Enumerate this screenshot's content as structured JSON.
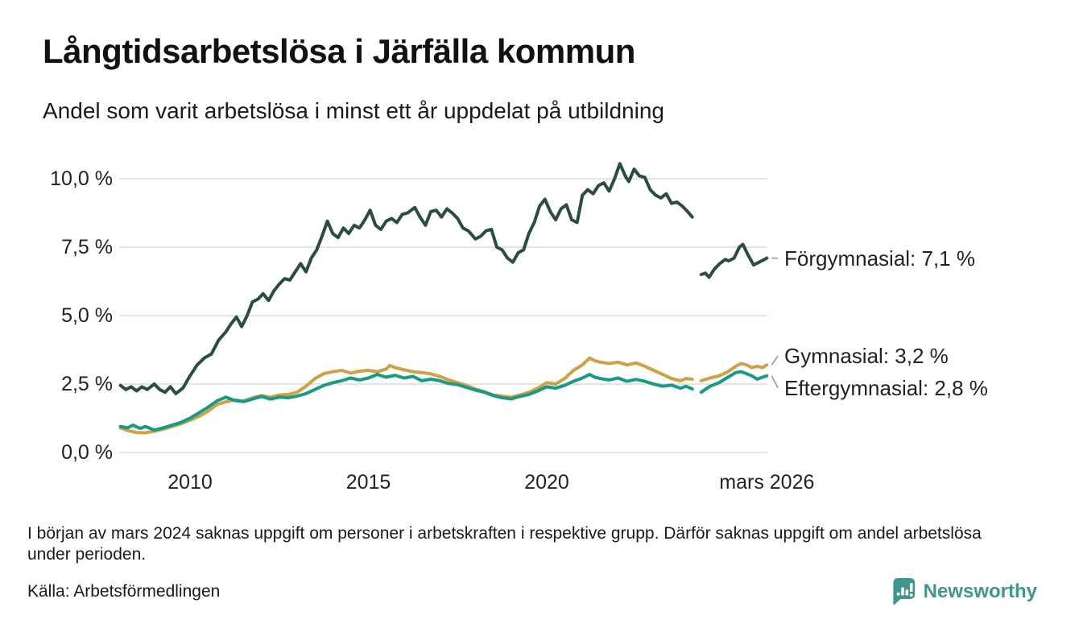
{
  "header": {
    "title": "Långtidsarbetslösa i Järfälla kommun",
    "subtitle": "Andel som varit arbetslösa i minst ett år uppdelat på utbildning"
  },
  "footnote": "I början av mars 2024 saknas uppgift om personer i arbetskraften i respektive grupp. Därför saknas uppgift om andel arbetslösa under perioden.",
  "source": "Källa: Arbetsförmedlingen",
  "branding": {
    "logo_text": "Newsworthy",
    "logo_color": "#3f968e"
  },
  "colors": {
    "grid": "#e5e4e2",
    "leader": "#999999",
    "axis_text": "#222222",
    "annotation_text": "#222222"
  },
  "chart_data": {
    "type": "line",
    "title": "Långtidsarbetslösa i Järfälla kommun",
    "subtitle": "Andel som varit arbetslösa i minst ett år uppdelat på utbildning",
    "xlabel": "",
    "ylabel": "",
    "ylim": [
      0,
      10.8
    ],
    "grid": "horizontal",
    "legend_position": "right-end-labels",
    "y_ticks": [
      {
        "value": 0.0,
        "label": "0,0 %"
      },
      {
        "value": 2.5,
        "label": "2,5 %"
      },
      {
        "value": 5.0,
        "label": "5,0 %"
      },
      {
        "value": 7.5,
        "label": "7,5 %"
      },
      {
        "value": 10.0,
        "label": "10,0 %"
      }
    ],
    "x_ticks": [
      {
        "value": 2010,
        "label": "2010"
      },
      {
        "value": 2015,
        "label": "2015"
      },
      {
        "value": 2020,
        "label": "2020"
      },
      {
        "value": 2026.17,
        "label": "mars 2026"
      }
    ],
    "gap_note": "data missing from early mars 2024",
    "series": [
      {
        "name": "Förgymnasial",
        "end_label": "Förgymnasial: 7,1 %",
        "end_value": "7,1 %",
        "color": "#2b4c42",
        "points": [
          [
            2008.05,
            2.45
          ],
          [
            2008.2,
            2.3
          ],
          [
            2008.35,
            2.4
          ],
          [
            2008.5,
            2.25
          ],
          [
            2008.65,
            2.4
          ],
          [
            2008.8,
            2.3
          ],
          [
            2009.0,
            2.5
          ],
          [
            2009.15,
            2.3
          ],
          [
            2009.3,
            2.2
          ],
          [
            2009.45,
            2.4
          ],
          [
            2009.6,
            2.15
          ],
          [
            2009.8,
            2.35
          ],
          [
            2010.0,
            2.8
          ],
          [
            2010.2,
            3.2
          ],
          [
            2010.4,
            3.45
          ],
          [
            2010.6,
            3.6
          ],
          [
            2010.8,
            4.1
          ],
          [
            2011.0,
            4.4
          ],
          [
            2011.15,
            4.7
          ],
          [
            2011.3,
            4.95
          ],
          [
            2011.45,
            4.6
          ],
          [
            2011.6,
            5.0
          ],
          [
            2011.75,
            5.5
          ],
          [
            2011.9,
            5.6
          ],
          [
            2012.05,
            5.8
          ],
          [
            2012.2,
            5.55
          ],
          [
            2012.35,
            5.9
          ],
          [
            2012.5,
            6.15
          ],
          [
            2012.65,
            6.35
          ],
          [
            2012.8,
            6.3
          ],
          [
            2012.95,
            6.6
          ],
          [
            2013.1,
            6.9
          ],
          [
            2013.25,
            6.6
          ],
          [
            2013.4,
            7.1
          ],
          [
            2013.55,
            7.4
          ],
          [
            2013.7,
            7.9
          ],
          [
            2013.85,
            8.45
          ],
          [
            2014.0,
            8.0
          ],
          [
            2014.15,
            7.85
          ],
          [
            2014.3,
            8.2
          ],
          [
            2014.45,
            8.0
          ],
          [
            2014.6,
            8.3
          ],
          [
            2014.75,
            8.2
          ],
          [
            2014.9,
            8.5
          ],
          [
            2015.05,
            8.85
          ],
          [
            2015.2,
            8.3
          ],
          [
            2015.35,
            8.15
          ],
          [
            2015.5,
            8.45
          ],
          [
            2015.65,
            8.55
          ],
          [
            2015.8,
            8.4
          ],
          [
            2015.95,
            8.7
          ],
          [
            2016.1,
            8.75
          ],
          [
            2016.3,
            8.95
          ],
          [
            2016.45,
            8.6
          ],
          [
            2016.6,
            8.3
          ],
          [
            2016.75,
            8.8
          ],
          [
            2016.9,
            8.85
          ],
          [
            2017.05,
            8.6
          ],
          [
            2017.2,
            8.9
          ],
          [
            2017.35,
            8.75
          ],
          [
            2017.5,
            8.55
          ],
          [
            2017.65,
            8.2
          ],
          [
            2017.8,
            8.1
          ],
          [
            2018.0,
            7.8
          ],
          [
            2018.15,
            7.9
          ],
          [
            2018.3,
            8.1
          ],
          [
            2018.45,
            8.15
          ],
          [
            2018.6,
            7.5
          ],
          [
            2018.75,
            7.4
          ],
          [
            2018.9,
            7.1
          ],
          [
            2019.05,
            6.95
          ],
          [
            2019.2,
            7.3
          ],
          [
            2019.35,
            7.4
          ],
          [
            2019.5,
            8.0
          ],
          [
            2019.65,
            8.4
          ],
          [
            2019.8,
            9.0
          ],
          [
            2019.95,
            9.25
          ],
          [
            2020.1,
            8.8
          ],
          [
            2020.25,
            8.5
          ],
          [
            2020.4,
            8.9
          ],
          [
            2020.55,
            9.05
          ],
          [
            2020.7,
            8.5
          ],
          [
            2020.85,
            8.4
          ],
          [
            2021.0,
            9.4
          ],
          [
            2021.15,
            9.6
          ],
          [
            2021.3,
            9.45
          ],
          [
            2021.45,
            9.75
          ],
          [
            2021.6,
            9.85
          ],
          [
            2021.75,
            9.55
          ],
          [
            2021.9,
            10.0
          ],
          [
            2022.05,
            10.55
          ],
          [
            2022.2,
            10.1
          ],
          [
            2022.3,
            9.9
          ],
          [
            2022.45,
            10.35
          ],
          [
            2022.6,
            10.1
          ],
          [
            2022.75,
            10.05
          ],
          [
            2022.9,
            9.6
          ],
          [
            2023.05,
            9.4
          ],
          [
            2023.2,
            9.3
          ],
          [
            2023.35,
            9.45
          ],
          [
            2023.5,
            9.1
          ],
          [
            2023.65,
            9.15
          ],
          [
            2023.8,
            9.0
          ],
          [
            2023.95,
            8.8
          ],
          [
            2024.08,
            8.6
          ],
          null,
          [
            2024.33,
            6.5
          ],
          [
            2024.45,
            6.55
          ],
          [
            2024.55,
            6.4
          ],
          [
            2024.7,
            6.7
          ],
          [
            2024.85,
            6.9
          ],
          [
            2025.0,
            7.05
          ],
          [
            2025.1,
            7.0
          ],
          [
            2025.25,
            7.1
          ],
          [
            2025.4,
            7.5
          ],
          [
            2025.5,
            7.6
          ],
          [
            2025.65,
            7.2
          ],
          [
            2025.8,
            6.85
          ],
          [
            2025.95,
            6.95
          ],
          [
            2026.17,
            7.1
          ]
        ]
      },
      {
        "name": "Gymnasial",
        "end_label": "Gymnasial: 3,2 %",
        "end_value": "3,2 %",
        "color": "#cfa144",
        "points": [
          [
            2008.05,
            0.9
          ],
          [
            2008.25,
            0.8
          ],
          [
            2008.5,
            0.73
          ],
          [
            2008.75,
            0.72
          ],
          [
            2009.0,
            0.78
          ],
          [
            2009.25,
            0.85
          ],
          [
            2009.5,
            0.95
          ],
          [
            2009.75,
            1.05
          ],
          [
            2010.0,
            1.18
          ],
          [
            2010.25,
            1.32
          ],
          [
            2010.5,
            1.5
          ],
          [
            2010.75,
            1.75
          ],
          [
            2011.0,
            1.85
          ],
          [
            2011.25,
            1.92
          ],
          [
            2011.5,
            1.88
          ],
          [
            2011.75,
            2.0
          ],
          [
            2012.0,
            2.08
          ],
          [
            2012.25,
            2.02
          ],
          [
            2012.5,
            2.1
          ],
          [
            2012.75,
            2.12
          ],
          [
            2013.0,
            2.2
          ],
          [
            2013.25,
            2.42
          ],
          [
            2013.5,
            2.7
          ],
          [
            2013.75,
            2.88
          ],
          [
            2014.0,
            2.95
          ],
          [
            2014.25,
            3.0
          ],
          [
            2014.5,
            2.9
          ],
          [
            2014.75,
            2.97
          ],
          [
            2015.0,
            3.0
          ],
          [
            2015.25,
            2.95
          ],
          [
            2015.5,
            3.05
          ],
          [
            2015.6,
            3.18
          ],
          [
            2015.75,
            3.1
          ],
          [
            2016.0,
            3.02
          ],
          [
            2016.25,
            2.95
          ],
          [
            2016.5,
            2.92
          ],
          [
            2016.75,
            2.87
          ],
          [
            2017.0,
            2.78
          ],
          [
            2017.25,
            2.65
          ],
          [
            2017.5,
            2.55
          ],
          [
            2017.75,
            2.45
          ],
          [
            2018.0,
            2.32
          ],
          [
            2018.25,
            2.22
          ],
          [
            2018.5,
            2.1
          ],
          [
            2018.75,
            2.06
          ],
          [
            2019.0,
            2.02
          ],
          [
            2019.25,
            2.1
          ],
          [
            2019.5,
            2.2
          ],
          [
            2019.75,
            2.35
          ],
          [
            2020.0,
            2.55
          ],
          [
            2020.25,
            2.5
          ],
          [
            2020.5,
            2.7
          ],
          [
            2020.75,
            3.0
          ],
          [
            2021.0,
            3.2
          ],
          [
            2021.2,
            3.45
          ],
          [
            2021.35,
            3.35
          ],
          [
            2021.5,
            3.3
          ],
          [
            2021.75,
            3.25
          ],
          [
            2022.0,
            3.3
          ],
          [
            2022.25,
            3.2
          ],
          [
            2022.5,
            3.27
          ],
          [
            2022.75,
            3.15
          ],
          [
            2023.0,
            3.0
          ],
          [
            2023.25,
            2.85
          ],
          [
            2023.5,
            2.7
          ],
          [
            2023.75,
            2.62
          ],
          [
            2023.9,
            2.7
          ],
          [
            2024.08,
            2.68
          ],
          null,
          [
            2024.33,
            2.62
          ],
          [
            2024.58,
            2.72
          ],
          [
            2024.83,
            2.8
          ],
          [
            2025.08,
            2.95
          ],
          [
            2025.3,
            3.15
          ],
          [
            2025.45,
            3.25
          ],
          [
            2025.6,
            3.2
          ],
          [
            2025.75,
            3.1
          ],
          [
            2025.9,
            3.15
          ],
          [
            2026.05,
            3.1
          ],
          [
            2026.17,
            3.2
          ]
        ]
      },
      {
        "name": "Eftergymnasial",
        "end_label": "Eftergymnasial: 2,8 %",
        "end_value": "2,8 %",
        "color": "#169b87",
        "points": [
          [
            2008.05,
            0.95
          ],
          [
            2008.25,
            0.9
          ],
          [
            2008.4,
            1.0
          ],
          [
            2008.6,
            0.88
          ],
          [
            2008.75,
            0.95
          ],
          [
            2009.0,
            0.82
          ],
          [
            2009.25,
            0.9
          ],
          [
            2009.5,
            1.0
          ],
          [
            2009.75,
            1.1
          ],
          [
            2010.0,
            1.25
          ],
          [
            2010.25,
            1.45
          ],
          [
            2010.5,
            1.65
          ],
          [
            2010.75,
            1.88
          ],
          [
            2011.0,
            2.02
          ],
          [
            2011.25,
            1.9
          ],
          [
            2011.5,
            1.86
          ],
          [
            2011.75,
            1.95
          ],
          [
            2012.0,
            2.05
          ],
          [
            2012.25,
            1.95
          ],
          [
            2012.5,
            2.02
          ],
          [
            2012.75,
            2.0
          ],
          [
            2013.0,
            2.06
          ],
          [
            2013.25,
            2.15
          ],
          [
            2013.5,
            2.3
          ],
          [
            2013.75,
            2.45
          ],
          [
            2014.0,
            2.55
          ],
          [
            2014.25,
            2.62
          ],
          [
            2014.5,
            2.72
          ],
          [
            2014.75,
            2.65
          ],
          [
            2015.0,
            2.72
          ],
          [
            2015.25,
            2.85
          ],
          [
            2015.5,
            2.75
          ],
          [
            2015.75,
            2.82
          ],
          [
            2016.0,
            2.72
          ],
          [
            2016.25,
            2.78
          ],
          [
            2016.5,
            2.62
          ],
          [
            2016.75,
            2.68
          ],
          [
            2017.0,
            2.62
          ],
          [
            2017.25,
            2.52
          ],
          [
            2017.5,
            2.48
          ],
          [
            2017.75,
            2.38
          ],
          [
            2018.0,
            2.28
          ],
          [
            2018.25,
            2.2
          ],
          [
            2018.5,
            2.08
          ],
          [
            2018.75,
            2.0
          ],
          [
            2019.0,
            1.96
          ],
          [
            2019.25,
            2.05
          ],
          [
            2019.5,
            2.12
          ],
          [
            2019.75,
            2.25
          ],
          [
            2020.0,
            2.4
          ],
          [
            2020.25,
            2.35
          ],
          [
            2020.5,
            2.45
          ],
          [
            2020.75,
            2.6
          ],
          [
            2021.0,
            2.72
          ],
          [
            2021.2,
            2.85
          ],
          [
            2021.35,
            2.75
          ],
          [
            2021.5,
            2.7
          ],
          [
            2021.75,
            2.65
          ],
          [
            2022.0,
            2.72
          ],
          [
            2022.25,
            2.6
          ],
          [
            2022.5,
            2.67
          ],
          [
            2022.75,
            2.6
          ],
          [
            2023.0,
            2.5
          ],
          [
            2023.25,
            2.42
          ],
          [
            2023.5,
            2.46
          ],
          [
            2023.75,
            2.35
          ],
          [
            2023.9,
            2.42
          ],
          [
            2024.08,
            2.32
          ],
          null,
          [
            2024.33,
            2.2
          ],
          [
            2024.58,
            2.42
          ],
          [
            2024.83,
            2.55
          ],
          [
            2025.08,
            2.75
          ],
          [
            2025.3,
            2.92
          ],
          [
            2025.45,
            2.95
          ],
          [
            2025.6,
            2.88
          ],
          [
            2025.75,
            2.8
          ],
          [
            2025.9,
            2.68
          ],
          [
            2026.05,
            2.75
          ],
          [
            2026.17,
            2.8
          ]
        ]
      }
    ]
  }
}
